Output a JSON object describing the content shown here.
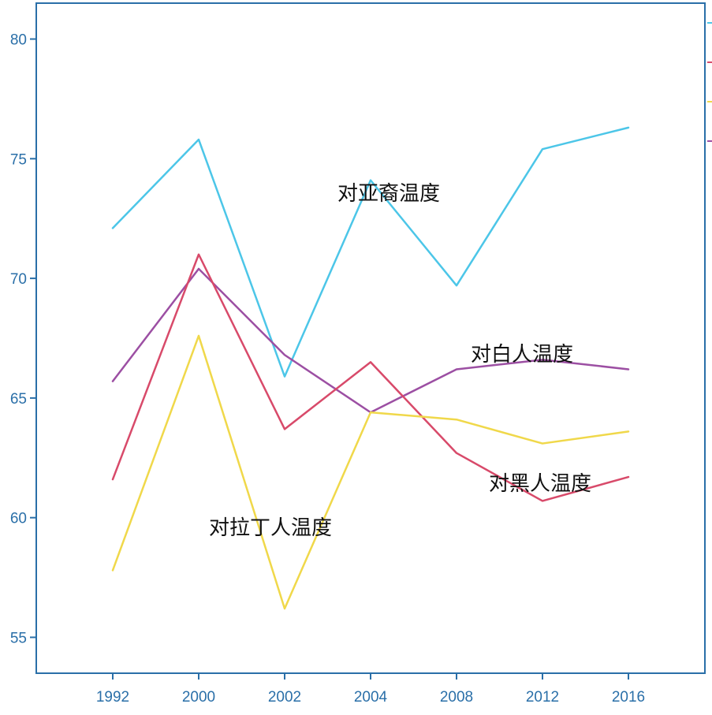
{
  "chart_data": {
    "type": "line",
    "x": [
      "1992",
      "2000",
      "2002",
      "2004",
      "2008",
      "2012",
      "2016"
    ],
    "ylim": [
      53.5,
      81.5
    ],
    "yticks": [
      55,
      60,
      65,
      70,
      75,
      80
    ],
    "series": [
      {
        "name": "对亚裔温度",
        "color": "#4cc6e8",
        "values": [
          72.1,
          75.8,
          65.9,
          74.1,
          69.7,
          75.4,
          76.3
        ]
      },
      {
        "name": "对白人温度",
        "color": "#9c4fa3",
        "values": [
          65.7,
          70.4,
          66.8,
          64.4,
          66.2,
          66.6,
          66.2
        ]
      },
      {
        "name": "对黑人温度",
        "color": "#d84a6a",
        "values": [
          61.6,
          71.0,
          63.7,
          66.5,
          62.7,
          60.7,
          61.7
        ]
      },
      {
        "name": "对拉丁人温度",
        "color": "#f0d84a",
        "values": [
          57.8,
          67.6,
          56.2,
          64.4,
          64.1,
          63.1,
          63.6
        ]
      }
    ],
    "annotations": [
      "对亚裔温度",
      "对白人温度",
      "对黑人温度",
      "对拉丁人温度"
    ],
    "xlabel": "",
    "ylabel": "",
    "grid": false,
    "legend": "right-edge (clipped)"
  }
}
